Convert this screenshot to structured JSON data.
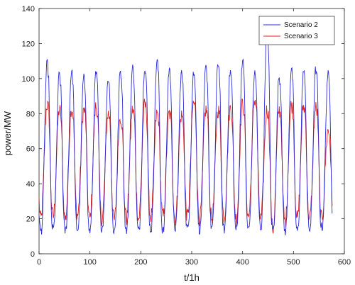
{
  "chart_data": {
    "type": "line",
    "title": "",
    "xlabel": "t/1h",
    "ylabel": "power/MW",
    "xlim": [
      0,
      600
    ],
    "ylim": [
      0,
      140
    ],
    "xticks": [
      0,
      100,
      200,
      300,
      400,
      500,
      600
    ],
    "yticks": [
      0,
      20,
      40,
      60,
      80,
      100,
      120,
      140
    ],
    "grid": false,
    "legend_position": "top-right",
    "period_hours": 24,
    "num_days": 24,
    "series": [
      {
        "name": "Scenario 2",
        "color": "#2b2bd9",
        "daily_peaks": [
          108,
          102,
          104,
          100,
          103,
          100,
          104,
          106,
          107,
          110,
          105,
          103,
          103,
          106,
          109,
          104,
          110,
          103,
          128,
          101,
          105,
          104,
          105,
          102
        ],
        "daily_troughs": [
          13,
          14,
          13,
          14,
          13,
          15,
          13,
          14,
          13,
          14,
          13,
          15,
          14,
          14,
          15,
          14,
          14,
          14,
          15,
          14,
          13,
          13,
          14,
          15
        ]
      },
      {
        "name": "Scenario 3",
        "color": "#e02020",
        "daily_peaks": [
          85,
          82,
          83,
          82,
          84,
          80,
          78,
          82,
          85,
          80,
          80,
          79,
          86,
          82,
          82,
          83,
          85,
          88,
          82,
          82,
          85,
          84,
          83,
          70
        ],
        "daily_troughs": [
          20,
          21,
          20,
          22,
          20,
          20,
          19,
          20,
          20,
          21,
          21,
          20,
          21,
          20,
          20,
          21,
          20,
          21,
          20,
          14,
          18,
          20,
          20,
          20
        ]
      }
    ]
  }
}
